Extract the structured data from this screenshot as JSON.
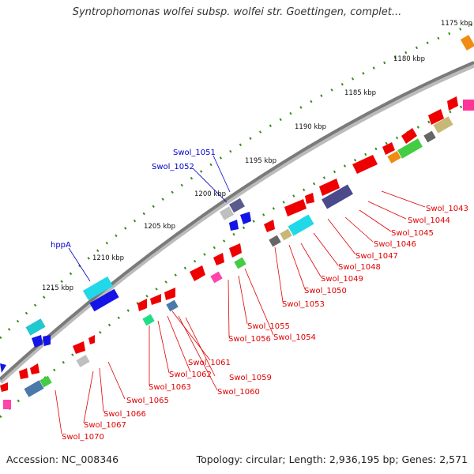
{
  "title": "Syntrophomonas wolfei subsp. wolfei str. Goettingen, complet...",
  "footer": {
    "accession": "Accession: NC_008346",
    "summary": "Topology: circular; Length: 2,936,195 bp; Genes: 2,571"
  },
  "colors": {
    "backbone": "#888888",
    "tick": "#3a8a1a",
    "outer_label_line": "#0000cc",
    "inner_label_line": "#e00000",
    "red_gene": "#ee0000",
    "blue_gene": "#1414e6",
    "cyan_gene": "#20d8e8",
    "slate_gene": "#4a4a8c"
  },
  "scale_labels": [
    "1175 kbp",
    "1180 kbp",
    "1185 kbp",
    "1190 kbp",
    "1195 kbp",
    "1200 kbp",
    "1205 kbp",
    "1210 kbp",
    "1215 kbp"
  ],
  "outer_gene_labels": [
    "Swol_1051",
    "Swol_1052",
    "hppA"
  ],
  "inner_gene_labels": [
    "Swol_1043",
    "Swol_1044",
    "Swol_1045",
    "Swol_1046",
    "Swol_1047",
    "Swol_1048",
    "Swol_1049",
    "Swol_1050",
    "Swol_1053",
    "Swol_1054",
    "Swol_1055",
    "Swol_1056",
    "Swol_1059",
    "Swol_1060",
    "Swol_1061",
    "Swol_1062",
    "Swol_1063",
    "Swol_1065",
    "Swol_1066",
    "Swol_1067",
    "Swol_1070"
  ]
}
